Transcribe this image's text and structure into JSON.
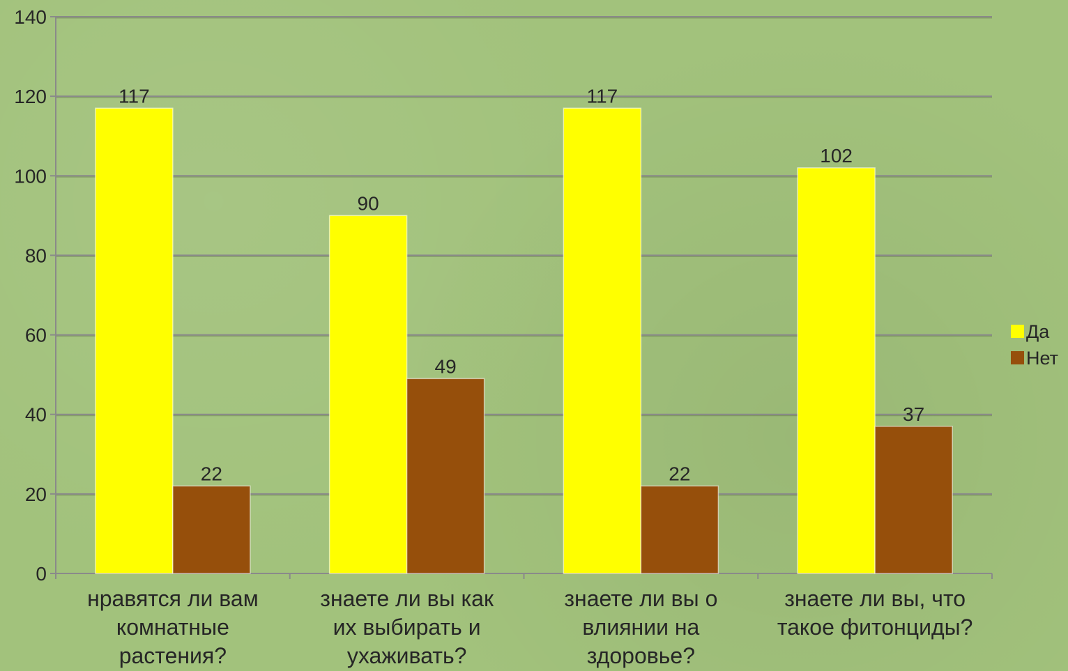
{
  "chart_data": {
    "type": "bar",
    "title": "",
    "xlabel": "",
    "ylabel": "",
    "ylim": [
      0,
      140
    ],
    "yticks": [
      0,
      20,
      40,
      60,
      80,
      100,
      120,
      140
    ],
    "grid": true,
    "legend_position": "right",
    "categories": [
      [
        "нравятся ли вам",
        "комнатные",
        "растения?"
      ],
      [
        "знаете ли вы как",
        "их выбирать и",
        "ухаживать?"
      ],
      [
        "знаете ли вы о",
        "влиянии на",
        "здоровье?"
      ],
      [
        "знаете ли вы, что",
        "такое фитонциды?"
      ]
    ],
    "series": [
      {
        "name": "Да",
        "color": "#ffff00",
        "values": [
          117,
          90,
          117,
          102
        ]
      },
      {
        "name": "Нет",
        "color": "#964f0b",
        "values": [
          22,
          49,
          22,
          37
        ]
      }
    ]
  }
}
